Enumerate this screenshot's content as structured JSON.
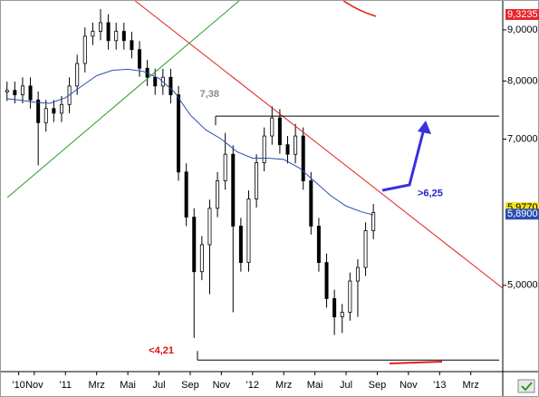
{
  "chart_data": {
    "type": "candlestick",
    "log_scale": true,
    "xlim": [
      -2.2,
      30.05
    ],
    "ylim": [
      4.1,
      9.64
    ],
    "xticks": [
      {
        "value": -1,
        "label": "'10"
      },
      {
        "value": 0,
        "label": "Nov"
      },
      {
        "value": 2,
        "label": "'11"
      },
      {
        "value": 4,
        "label": "Mrz"
      },
      {
        "value": 6,
        "label": "Mai"
      },
      {
        "value": 8,
        "label": "Jul"
      },
      {
        "value": 10,
        "label": "Sep"
      },
      {
        "value": 12,
        "label": "Nov"
      },
      {
        "value": 14,
        "label": "'12"
      },
      {
        "value": 16,
        "label": "Mrz"
      },
      {
        "value": 18,
        "label": "Mai"
      },
      {
        "value": 20,
        "label": "Jul"
      },
      {
        "value": 22,
        "label": "Sep"
      },
      {
        "value": 24,
        "label": "Nov"
      },
      {
        "value": 26,
        "label": "'13"
      },
      {
        "value": 28,
        "label": "Mrz"
      }
    ],
    "yticks": [
      {
        "value": 9,
        "label": "9,0000"
      },
      {
        "value": 8,
        "label": "8,0000"
      },
      {
        "value": 7,
        "label": "7,0000"
      },
      {
        "value": 5,
        "label": "5,0000"
      }
    ],
    "candles": {
      "x": [
        -1.75,
        -1.25,
        -0.75,
        -0.25,
        0.25,
        0.75,
        1.25,
        1.75,
        2.25,
        2.75,
        3.25,
        3.75,
        4.25,
        4.75,
        5.25,
        5.75,
        6.25,
        6.75,
        7.25,
        7.75,
        8.25,
        8.75,
        9.25,
        9.75,
        10.25,
        10.75,
        11.25,
        11.75,
        12.25,
        12.75,
        13.25,
        13.75,
        14.25,
        14.75,
        15.25,
        15.75,
        16.25,
        16.75,
        17.25,
        17.75,
        18.25,
        18.75,
        19.25,
        19.75,
        20.25,
        20.75,
        21.25,
        21.75
      ],
      "open": [
        7.8,
        7.83,
        7.75,
        7.91,
        7.66,
        7.27,
        7.51,
        7.43,
        7.58,
        7.91,
        8.33,
        8.87,
        8.97,
        9.15,
        8.78,
        8.97,
        8.78,
        8.6,
        8.24,
        8.07,
        7.91,
        8.07,
        7.75,
        6.49,
        5.85,
        5.16,
        5.49,
        5.97,
        6.36,
        6.76,
        5.73,
        5.27,
        6.1,
        6.63,
        7.05,
        7.35,
        6.91,
        6.76,
        7.05,
        6.36,
        5.73,
        5.27,
        4.85,
        4.65,
        4.7,
        5.05,
        5.21,
        5.67
      ],
      "high": [
        7.99,
        7.99,
        8.07,
        8.07,
        7.81,
        7.66,
        7.66,
        7.73,
        8.07,
        8.5,
        9.05,
        9.15,
        9.44,
        9.33,
        9.15,
        9.15,
        8.96,
        8.77,
        8.4,
        8.23,
        8.23,
        8.23,
        7.91,
        6.62,
        5.97,
        5.6,
        6.09,
        6.49,
        7.1,
        6.9,
        5.84,
        6.22,
        6.76,
        7.19,
        7.55,
        7.5,
        7.05,
        7.25,
        7.19,
        6.49,
        5.84,
        5.38,
        4.95,
        4.79,
        5.15,
        5.31,
        5.78,
        6.03
      ],
      "low": [
        7.64,
        7.6,
        7.6,
        7.51,
        6.59,
        7.12,
        7.28,
        7.28,
        7.43,
        7.75,
        8.16,
        8.69,
        8.79,
        8.6,
        8.6,
        8.6,
        8.43,
        8.08,
        7.91,
        7.75,
        7.75,
        7.6,
        6.36,
        5.73,
        4.43,
        5.06,
        4.9,
        5.85,
        6.23,
        4.7,
        5.16,
        5.16,
        5.98,
        6.5,
        6.91,
        6.77,
        6.62,
        6.62,
        6.23,
        5.62,
        5.16,
        4.75,
        4.46,
        4.48,
        4.61,
        4.65,
        5.11,
        5.56
      ],
      "close": [
        7.83,
        7.75,
        7.91,
        7.66,
        7.27,
        7.51,
        7.43,
        7.58,
        7.91,
        8.33,
        8.87,
        8.97,
        9.15,
        8.78,
        8.97,
        8.78,
        8.6,
        8.24,
        8.07,
        7.91,
        8.07,
        7.75,
        6.49,
        5.85,
        5.16,
        5.49,
        5.97,
        6.36,
        6.76,
        5.73,
        5.27,
        6.1,
        6.63,
        7.05,
        7.35,
        6.91,
        6.76,
        7.05,
        6.36,
        5.73,
        5.27,
        4.85,
        4.65,
        4.7,
        5.05,
        5.21,
        5.67,
        5.91
      ]
    },
    "ma": {
      "color": "#2a4fb0",
      "x": [
        -1.75,
        -1,
        0,
        1,
        2,
        3,
        4,
        5,
        6,
        7,
        8,
        9,
        10,
        11,
        12,
        13,
        14,
        15,
        16,
        17,
        18,
        19,
        20,
        21,
        21.75
      ],
      "values": [
        7.68,
        7.66,
        7.62,
        7.6,
        7.7,
        7.9,
        8.1,
        8.2,
        8.22,
        8.18,
        8.05,
        7.8,
        7.4,
        7.15,
        7.0,
        6.8,
        6.7,
        6.7,
        6.68,
        6.55,
        6.35,
        6.15,
        6.0,
        5.92,
        5.88
      ]
    },
    "levels": [
      {
        "value": 7.38,
        "label": "7,38",
        "color": "#8c8c8c"
      },
      {
        "value": 4.21,
        "label": "<4,21",
        "color": "#e01010"
      }
    ],
    "target": {
      "value": 6.25,
      "label": ">6,25",
      "color": "#2626c8"
    },
    "price_labels": [
      {
        "value": 9.3235,
        "label": "9,3235",
        "color": "#e8262a",
        "text_color": "#ffffff"
      },
      {
        "value": 5.977,
        "label": "5,9770",
        "color": "#f2e21a",
        "text_color": "#000000"
      },
      {
        "value": 5.89,
        "label": "5,8900",
        "color": "#2a4fb0",
        "text_color": "#ffffff"
      }
    ]
  }
}
